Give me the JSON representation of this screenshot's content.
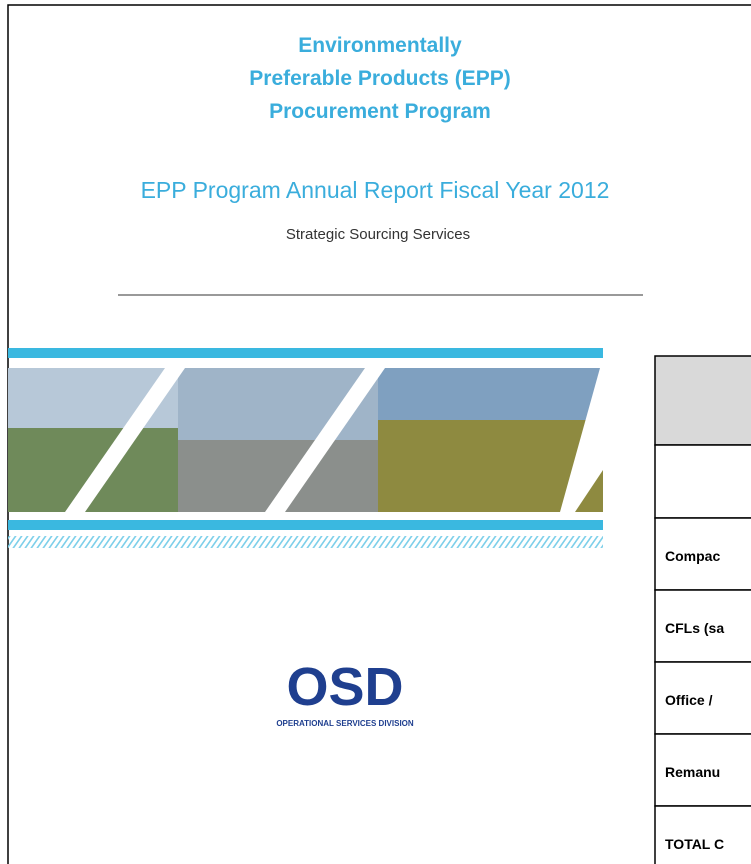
{
  "header": {
    "title": [
      "Environmentally",
      "Preferable Products (EPP)",
      "Procurement Program"
    ],
    "subtitle": "EPP Program Annual Report Fiscal Year 2012",
    "department": "Strategic Sourcing Services"
  },
  "table": {
    "rows": [
      "Compac",
      "CFLs (sa",
      "Office /",
      "Remanu",
      "TOTAL C"
    ]
  },
  "logo": {
    "name": "OSD",
    "caption": "OPERATIONAL SERVICES DIVISION"
  }
}
